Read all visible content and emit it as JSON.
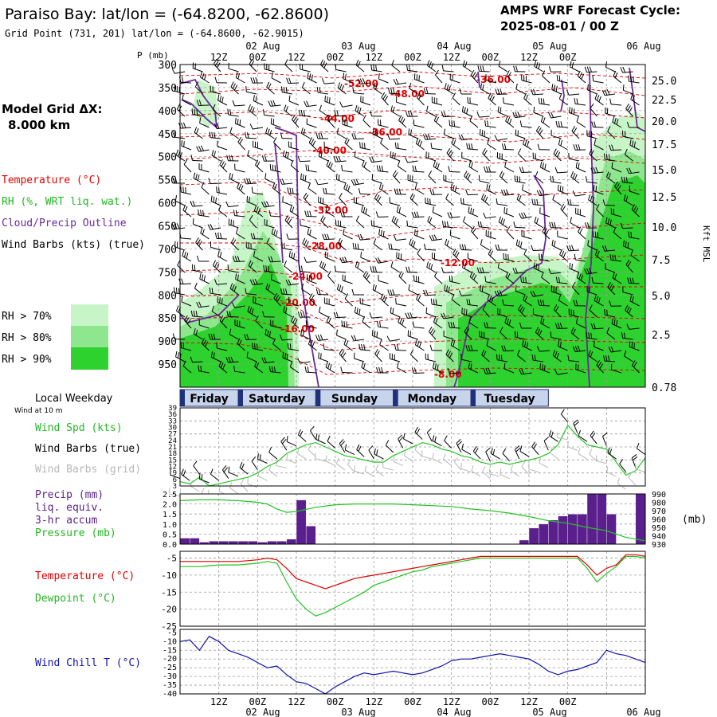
{
  "header": {
    "title": "Paraiso Bay:  lat/lon = (-64.8200, -62.8600)",
    "subtitle": "Grid Point (731, 201) lat/lon = (-64.8600, -62.9015)",
    "cycle_line1": "AMPS WRF Forecast Cycle:",
    "cycle_line2": "2025-08-01 / 00  Z"
  },
  "legend": {
    "grid_line1": "Model Grid ΔX:",
    "grid_line2": "8.000 km",
    "temperature": "Temperature (°C)",
    "rh": "RH (%, WRT liq. wat.)",
    "cloud": "Cloud/Precip Outline",
    "wind": "Wind Barbs (kts) (true)",
    "rh70": "RH > 70%",
    "rh80": "RH > 80%",
    "rh90": "RH > 90%",
    "local_weekday": "Local Weekday",
    "wind_at": "Wind at 10 m"
  },
  "colors": {
    "temperature": "#e00000",
    "rh": "#22c422",
    "cloud": "#6a2a9a",
    "precip": "#5a1f8c",
    "windchill": "#1010b0",
    "rh70": "#c8f5c8",
    "rh80": "#8ee68e",
    "rh90": "#2ed22e",
    "grey": "#b8b8b8"
  },
  "time_axis": {
    "top_dates": [
      "02 Aug",
      "03 Aug",
      "04 Aug",
      "05 Aug",
      "06 Aug"
    ],
    "hour_labels": [
      "12Z",
      "00Z",
      "12Z",
      "00Z",
      "12Z",
      "00Z",
      "12Z",
      "00Z",
      "12Z",
      "00Z"
    ],
    "days": [
      "Friday",
      "Saturday",
      "Sunday",
      "Monday",
      "Tuesday"
    ]
  },
  "cross_section": {
    "p_label": "P (mb)",
    "kft_label": "Kft MSL",
    "pressure_ticks": [
      "300",
      "350",
      "400",
      "450",
      "500",
      "550",
      "600",
      "650",
      "700",
      "750",
      "800",
      "850",
      "900",
      "950"
    ],
    "kft_ticks": [
      "25.0",
      "22.5",
      "20.0",
      "17.5",
      "15.0",
      "12.5",
      "10.0",
      "7.5",
      "5.0",
      "2.5",
      "0.78"
    ],
    "temp_contour_labels": [
      "-52.00",
      "-48.00",
      "-36.00",
      "-44.00",
      "-36.00",
      "-40.00",
      "-32.00",
      "-28.00",
      "-24.00",
      "-20.00",
      "-16.00",
      "-12.00",
      "-8.00"
    ]
  },
  "panels": {
    "wind": {
      "label_spd": "Wind Spd (kts)",
      "label_true": "Wind Barbs (true)",
      "label_grid": "Wind Barbs (grid)",
      "ticks": [
        "39",
        "36",
        "33",
        "30",
        "27",
        "24",
        "21",
        "18",
        "15",
        "12",
        "9",
        "6",
        "3"
      ]
    },
    "precip": {
      "label1": "Precip (mm)",
      "label2": "liq. equiv.",
      "label3": "3-hr accum",
      "label4": "Pressure (mb)",
      "unit": "(mb)",
      "left_ticks": [
        "2.5",
        "2.0",
        "1.5",
        "1.0",
        "0.5",
        "0.0"
      ],
      "right_ticks": [
        "990",
        "980",
        "970",
        "960",
        "950",
        "940",
        "930"
      ]
    },
    "temp": {
      "label_t": "Temperature (°C)",
      "label_td": "Dewpoint (°C)",
      "ticks": [
        "-5",
        "-10",
        "-15",
        "-20",
        "-25"
      ]
    },
    "chill": {
      "label": "Wind Chill T (°C)",
      "ticks": [
        "-5",
        "-10",
        "-15",
        "-20",
        "-25",
        "-30",
        "-35",
        "-40"
      ]
    }
  },
  "chart_data": [
    {
      "type": "line",
      "title": "Wind Spd (kts)",
      "x_hours": [
        0,
        3,
        6,
        9,
        12,
        15,
        18,
        21,
        24,
        27,
        30,
        33,
        36,
        39,
        42,
        45,
        48,
        51,
        54,
        57,
        60,
        63,
        66,
        69,
        72,
        75,
        78,
        81,
        84,
        87,
        90,
        93,
        96,
        99,
        102,
        105,
        108,
        111,
        114,
        117,
        120,
        123,
        126,
        129,
        132,
        135,
        138,
        141,
        144
      ],
      "values": [
        5,
        4,
        7,
        3,
        4,
        5,
        6,
        7,
        9,
        12,
        14,
        18,
        20,
        22,
        23,
        21,
        19,
        17,
        16,
        15,
        14,
        14,
        17,
        19,
        21,
        23,
        22,
        20,
        19,
        17,
        16,
        14,
        13,
        14,
        13,
        14,
        15,
        16,
        18,
        22,
        31,
        26,
        22,
        21,
        20,
        14,
        8,
        10,
        16
      ],
      "ylim": [
        3,
        39
      ]
    },
    {
      "type": "bar",
      "title": "Precip (mm) liq. equiv. 3-hr accum",
      "x_hours": [
        0,
        3,
        6,
        9,
        12,
        15,
        18,
        21,
        24,
        27,
        30,
        33,
        36,
        39,
        42,
        45,
        48,
        51,
        54,
        57,
        60,
        63,
        66,
        69,
        72,
        75,
        78,
        81,
        84,
        87,
        90,
        93,
        96,
        99,
        102,
        105,
        108,
        111,
        114,
        117,
        120,
        123,
        126,
        129,
        132,
        135,
        138,
        141,
        144
      ],
      "values": [
        0.3,
        0.3,
        0.1,
        0.15,
        0.15,
        0.15,
        0.15,
        0.15,
        0.1,
        0.15,
        0.15,
        0.25,
        2.2,
        0.9,
        0,
        0,
        0,
        0,
        0,
        0,
        0,
        0,
        0,
        0,
        0,
        0,
        0,
        0,
        0,
        0,
        0,
        0,
        0,
        0,
        0,
        0.2,
        0.8,
        1.0,
        1.2,
        1.4,
        1.5,
        1.5,
        2.5,
        2.5,
        1.5,
        0,
        0,
        2.5,
        2.5
      ],
      "ylim": [
        0,
        2.5
      ]
    },
    {
      "type": "line",
      "title": "Pressure (mb)",
      "x_hours": [
        0,
        6,
        12,
        18,
        24,
        27,
        30,
        33,
        36,
        42,
        48,
        54,
        60,
        66,
        72,
        78,
        84,
        90,
        96,
        102,
        108,
        114,
        120,
        126,
        132,
        138,
        144
      ],
      "values": [
        982,
        983,
        983,
        982,
        980,
        978,
        972,
        968,
        969,
        974,
        977,
        978,
        978,
        978,
        977,
        976,
        975,
        972,
        970,
        967,
        963,
        958,
        955,
        950,
        946,
        938,
        934
      ],
      "ylim": [
        930,
        990
      ]
    },
    {
      "type": "line",
      "title": "Temperature / Dewpoint (°C)",
      "x_hours": [
        0,
        6,
        12,
        18,
        24,
        27,
        30,
        33,
        36,
        39,
        42,
        45,
        48,
        51,
        54,
        57,
        60,
        63,
        66,
        69,
        72,
        75,
        78,
        81,
        84,
        87,
        90,
        93,
        96,
        99,
        102,
        105,
        108,
        111,
        114,
        117,
        120,
        123,
        126,
        129,
        132,
        135,
        138,
        141,
        144
      ],
      "series": [
        {
          "name": "Temperature",
          "values": [
            -6,
            -6,
            -6,
            -6,
            -5.5,
            -5,
            -5.5,
            -8,
            -11,
            -12,
            -13,
            -14,
            -13,
            -12,
            -11,
            -10.5,
            -10,
            -9.5,
            -9,
            -8.5,
            -8,
            -7.5,
            -7,
            -6.5,
            -6,
            -5.5,
            -5,
            -4.5,
            -4.5,
            -4.5,
            -4.5,
            -4.5,
            -4.5,
            -4.5,
            -4.5,
            -4.5,
            -4.5,
            -4.5,
            -7,
            -10,
            -8,
            -7,
            -4,
            -4,
            -4.5
          ]
        },
        {
          "name": "Dewpoint",
          "values": [
            -7.5,
            -7.5,
            -7,
            -7,
            -6.5,
            -6,
            -6.5,
            -12,
            -17,
            -20,
            -22,
            -21,
            -19.5,
            -18,
            -16.5,
            -15,
            -13,
            -12,
            -11,
            -10,
            -9,
            -8.5,
            -7.5,
            -7,
            -6.5,
            -6,
            -5.5,
            -5,
            -5,
            -5,
            -5,
            -5,
            -5,
            -5,
            -5,
            -5,
            -5,
            -5,
            -8,
            -12,
            -9.5,
            -7.5,
            -4.5,
            -4.5,
            -5
          ]
        }
      ],
      "ylim": [
        -25,
        -3
      ]
    },
    {
      "type": "line",
      "title": "Wind Chill T (°C)",
      "x_hours": [
        0,
        3,
        6,
        9,
        12,
        15,
        18,
        21,
        24,
        27,
        30,
        33,
        36,
        39,
        42,
        45,
        48,
        51,
        54,
        57,
        60,
        63,
        66,
        69,
        72,
        75,
        78,
        81,
        84,
        87,
        90,
        93,
        96,
        99,
        102,
        105,
        108,
        111,
        114,
        117,
        120,
        123,
        126,
        129,
        132,
        135,
        138,
        141,
        144
      ],
      "values": [
        -10,
        -9,
        -15,
        -7,
        -10,
        -15,
        -17,
        -19,
        -22,
        -25,
        -24,
        -29,
        -33,
        -34,
        -37,
        -40,
        -36,
        -33,
        -30,
        -28,
        -29,
        -28,
        -27,
        -28,
        -29,
        -28,
        -26,
        -24,
        -21,
        -20,
        -20,
        -19,
        -18,
        -17,
        -18,
        -19,
        -20,
        -23,
        -27,
        -29,
        -27,
        -26,
        -24,
        -22,
        -15,
        -17,
        -18,
        -20,
        -22
      ]
    }
  ]
}
